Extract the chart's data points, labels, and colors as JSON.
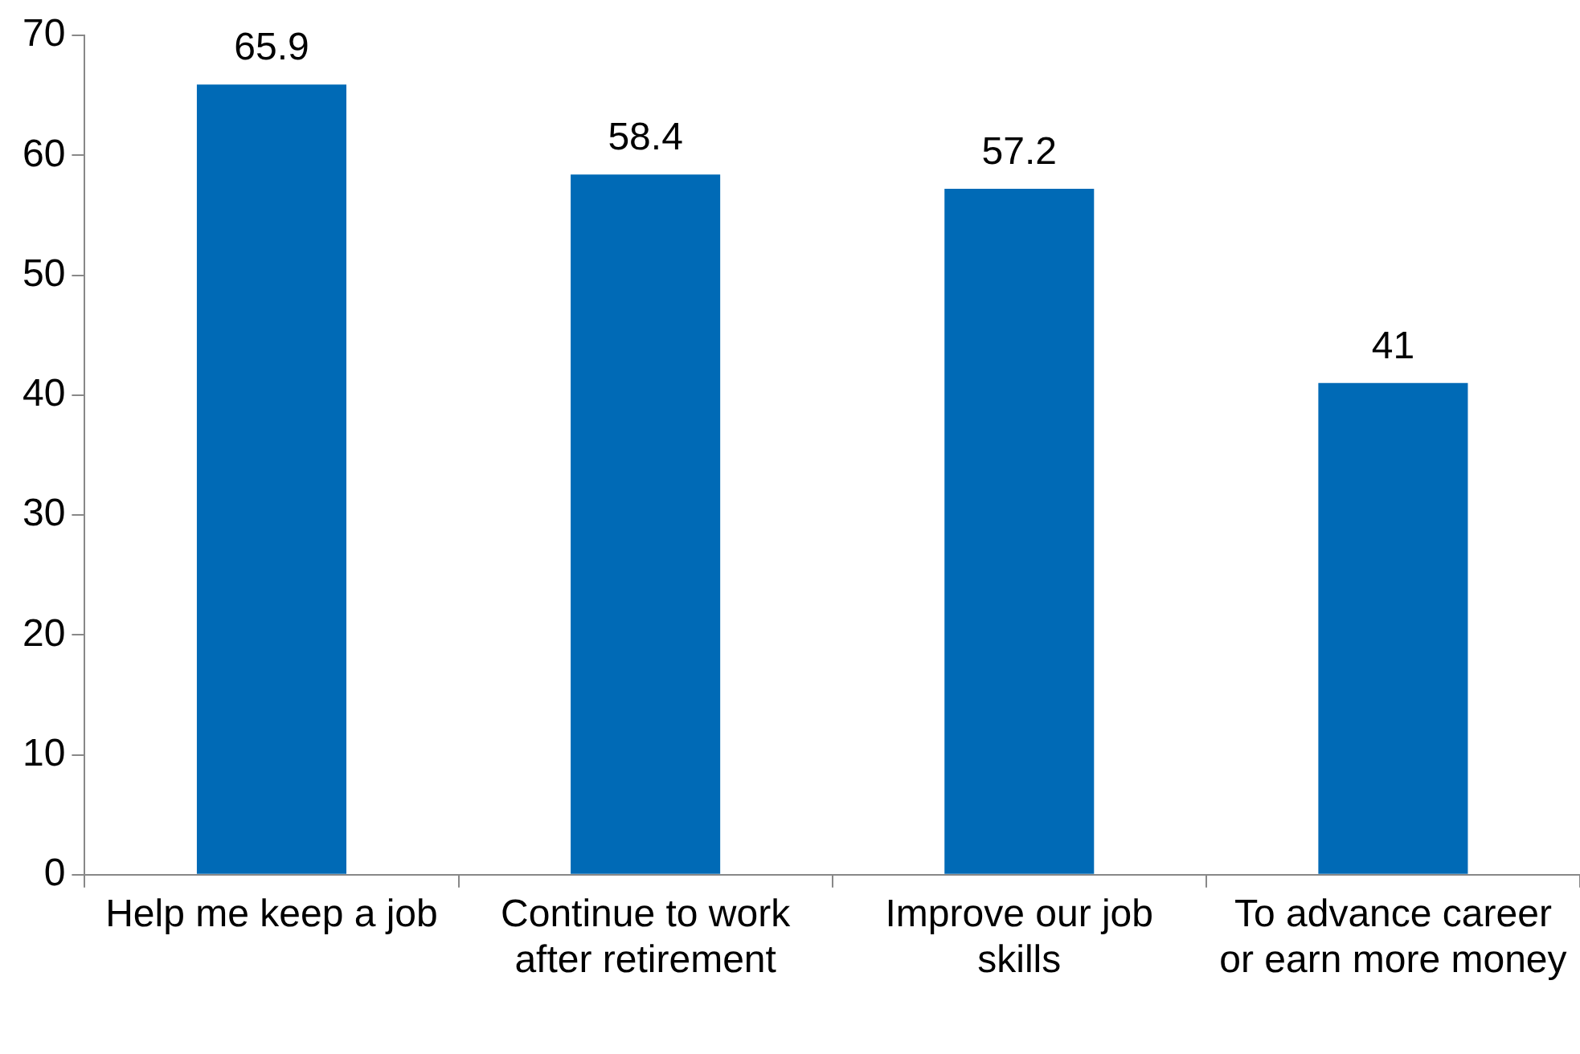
{
  "chart_data": {
    "type": "bar",
    "categories": [
      "Help me keep a job",
      "Continue to work after retirement",
      "Improve our job skills",
      "To advance career or earn more money"
    ],
    "values": [
      65.9,
      58.4,
      57.2,
      41
    ],
    "color": "#006ab6",
    "ylim": [
      0,
      70
    ],
    "yticks": [
      0,
      10,
      20,
      30,
      40,
      50,
      60,
      70
    ],
    "grid": false,
    "legend": false,
    "data_labels": true
  }
}
